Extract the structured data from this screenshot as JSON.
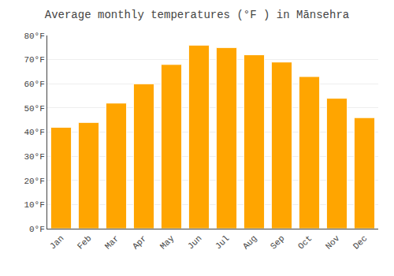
{
  "chart_data": {
    "type": "bar",
    "title": "Average monthly temperatures (°F ) in Mānsehra",
    "categories": [
      "Jan",
      "Feb",
      "Mar",
      "Apr",
      "May",
      "Jun",
      "Jul",
      "Aug",
      "Sep",
      "Oct",
      "Nov",
      "Dec"
    ],
    "values": [
      42,
      44,
      52,
      60,
      68,
      76,
      75,
      72,
      69,
      63,
      54,
      46
    ],
    "color": "#FFA500",
    "ylim": [
      0,
      80
    ],
    "yticks": [
      {
        "value": 0,
        "label": "0°F"
      },
      {
        "value": 10,
        "label": "10°F"
      },
      {
        "value": 20,
        "label": "20°F"
      },
      {
        "value": 30,
        "label": "30°F"
      },
      {
        "value": 40,
        "label": "40°F"
      },
      {
        "value": 50,
        "label": "50°F"
      },
      {
        "value": 60,
        "label": "60°F"
      },
      {
        "value": 70,
        "label": "70°F"
      },
      {
        "value": 80,
        "label": "80°F"
      }
    ],
    "grid": true
  }
}
